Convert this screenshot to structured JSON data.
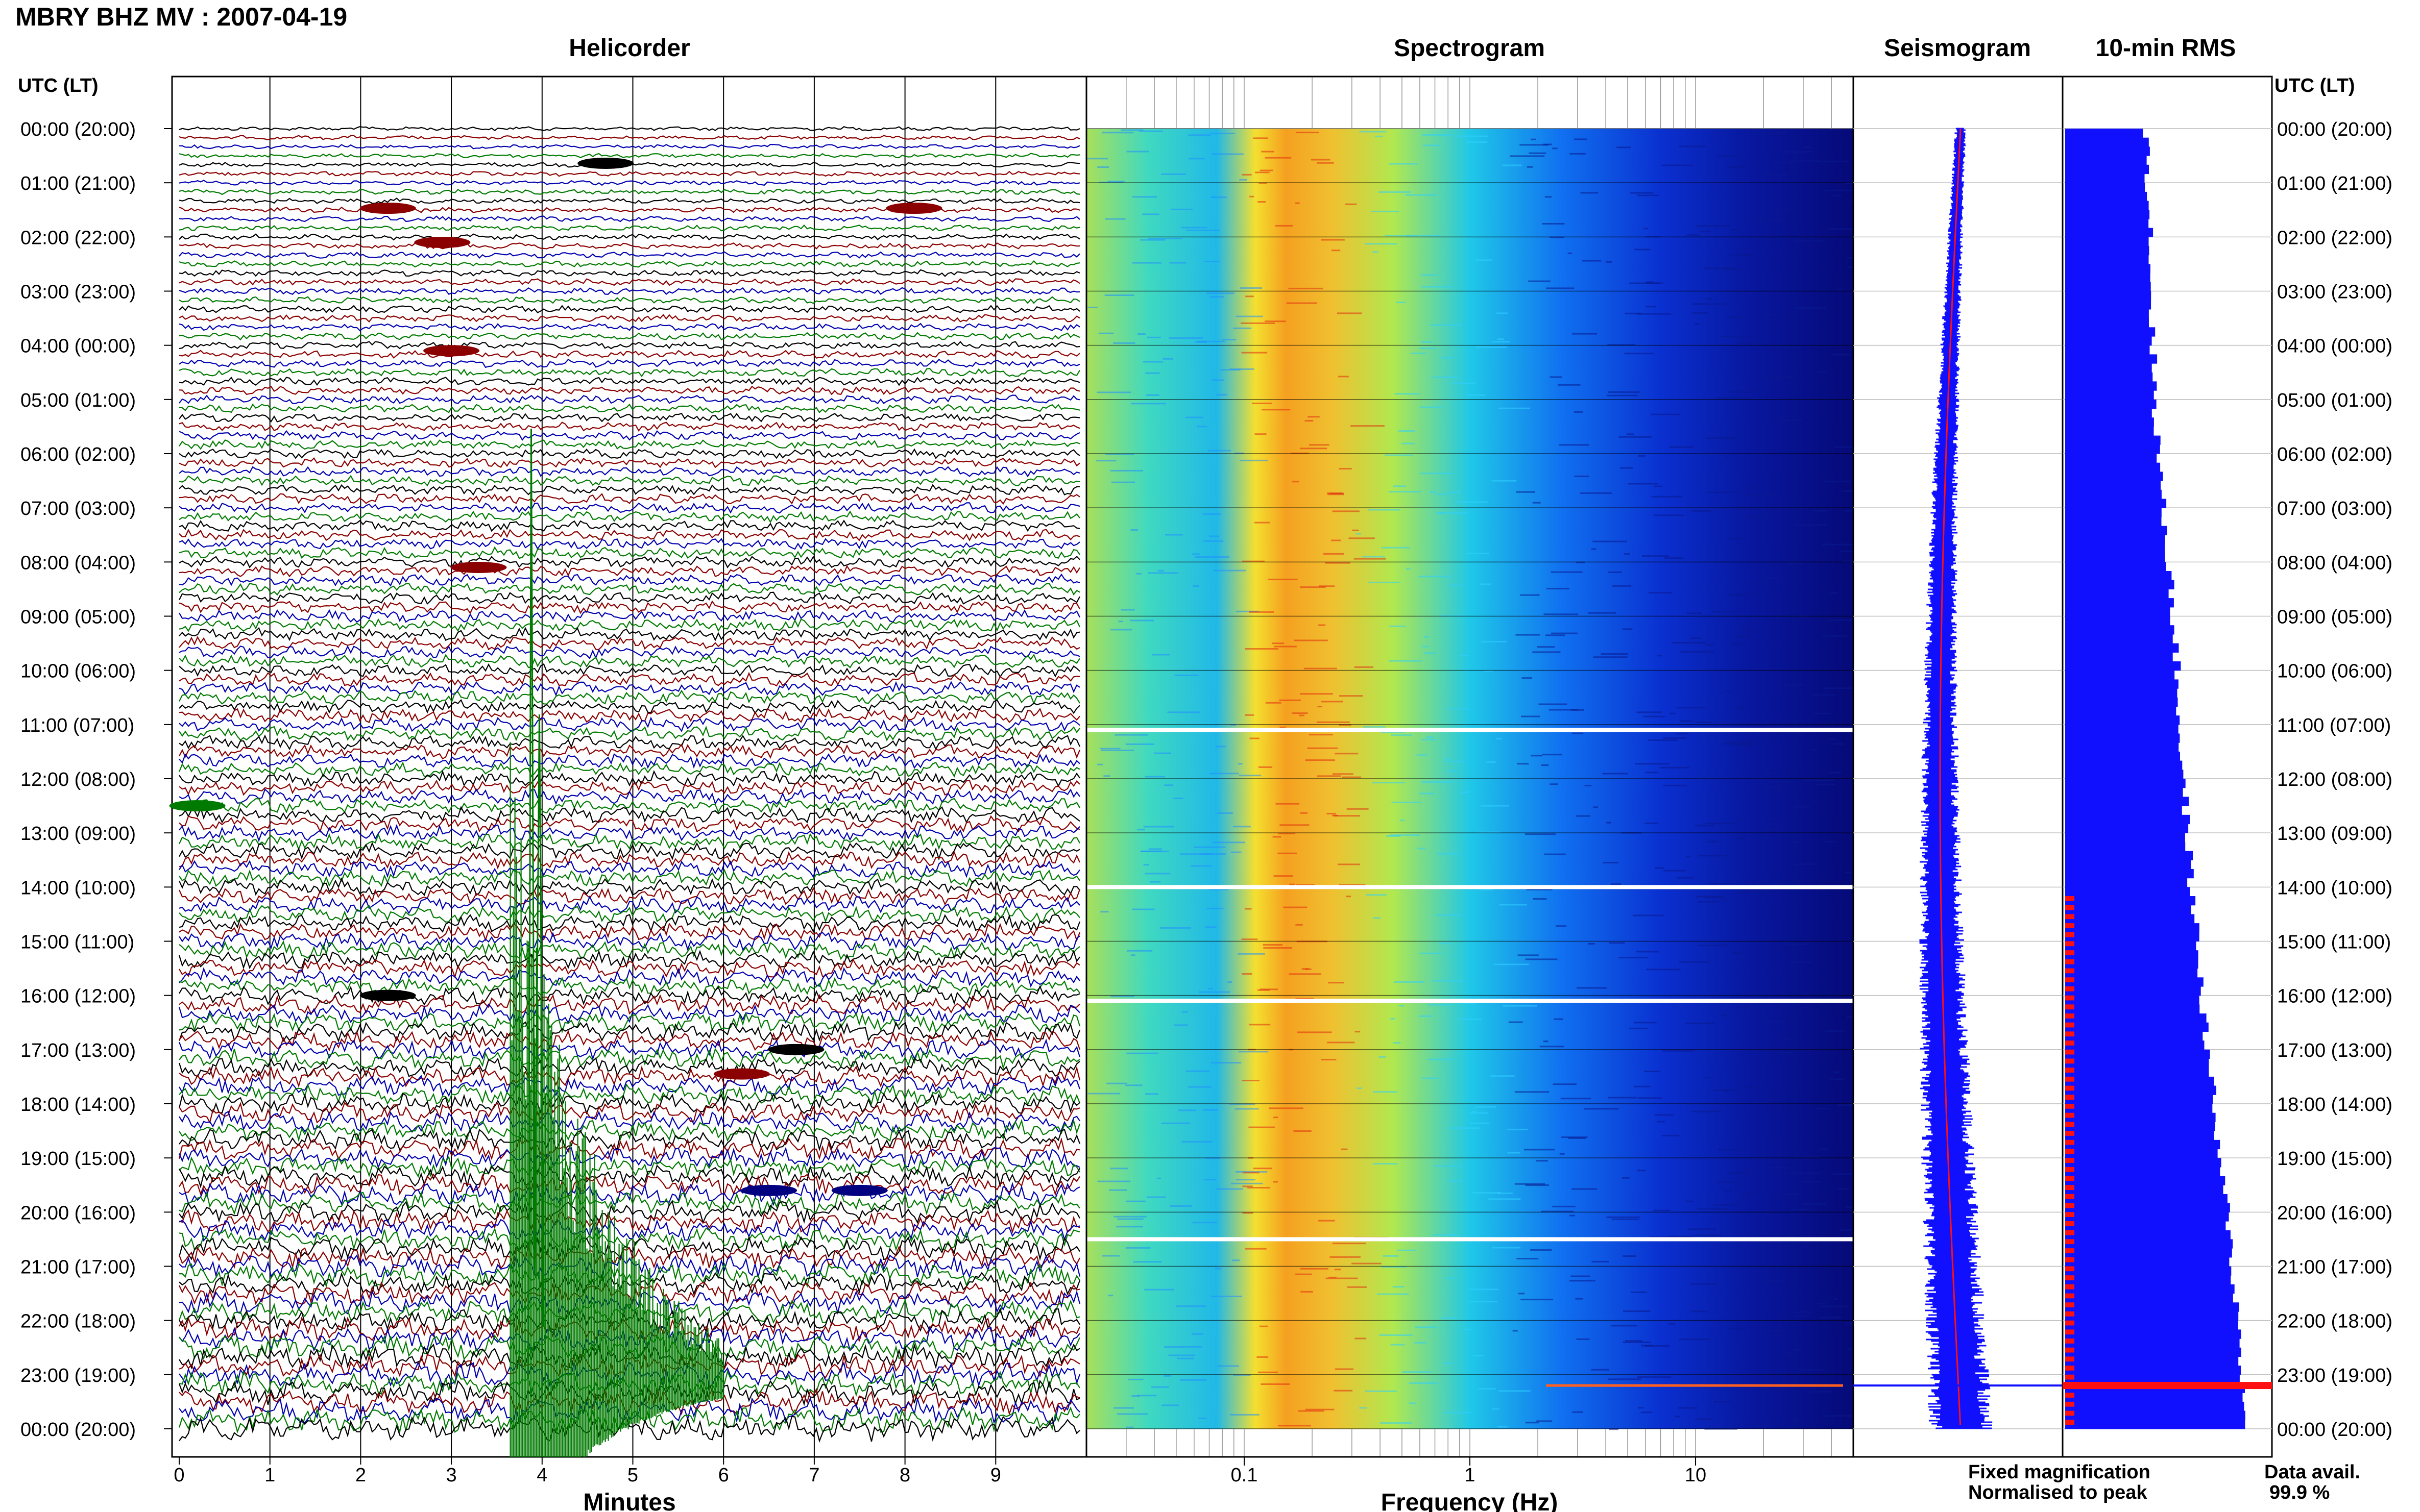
{
  "header": {
    "title": "MBRY BHZ MV : 2007-04-19"
  },
  "panels": {
    "helicorder": "Helicorder",
    "spectrogram": "Spectrogram",
    "seismogram": "Seismogram",
    "rms": "10-min RMS"
  },
  "axis": {
    "time_label_left": "UTC (LT)",
    "time_label_right": "UTC (LT)",
    "minutes_label": "Minutes",
    "frequency_label": "Frequency (Hz)"
  },
  "legend": {
    "fixed": "Fixed magnification",
    "normalised": "Normalised to peak",
    "fixed_color": "#1010ff",
    "normalised_color": "#ff1010"
  },
  "data_avail": {
    "label": "Data avail.",
    "value": "99.9 %"
  },
  "chart_data": {
    "type": "heatmap",
    "station": "MBRY BHZ MV",
    "date": "2007-04-19",
    "time_ticks": [
      "00:00 (20:00)",
      "01:00 (21:00)",
      "02:00 (22:00)",
      "03:00 (23:00)",
      "04:00 (00:00)",
      "05:00 (01:00)",
      "06:00 (02:00)",
      "07:00 (03:00)",
      "08:00 (04:00)",
      "09:00 (05:00)",
      "10:00 (06:00)",
      "11:00 (07:00)",
      "12:00 (08:00)",
      "13:00 (09:00)",
      "14:00 (10:00)",
      "15:00 (11:00)",
      "16:00 (12:00)",
      "17:00 (13:00)",
      "18:00 (14:00)",
      "19:00 (15:00)",
      "20:00 (16:00)",
      "21:00 (17:00)",
      "22:00 (18:00)",
      "23:00 (19:00)",
      "00:00 (20:00)"
    ],
    "minutes_ticks": [
      "0",
      "1",
      "2",
      "3",
      "4",
      "5",
      "6",
      "7",
      "8",
      "9"
    ],
    "minutes_range": [
      0,
      10
    ],
    "frequency_ticks": [
      {
        "value": 0.1,
        "label": "0.1"
      },
      {
        "value": 1,
        "label": "1"
      },
      {
        "value": 10,
        "label": "10"
      }
    ],
    "frequency_range": [
      0.02,
      50
    ],
    "frequency_scale": "log",
    "helicorder_colors": [
      "#000000",
      "#8b0000",
      "#0000b0",
      "#007a00"
    ],
    "spectrogram_gaps_hours": [
      11.1,
      14.0,
      16.1,
      20.5
    ],
    "event_time_hours": 23.2,
    "rms_hourly_relative": [
      0.4,
      0.41,
      0.42,
      0.42,
      0.43,
      0.44,
      0.46,
      0.48,
      0.51,
      0.53,
      0.55,
      0.56,
      0.58,
      0.6,
      0.62,
      0.65,
      0.67,
      0.7,
      0.73,
      0.75,
      0.8,
      0.82,
      0.85,
      0.87,
      0.87
    ]
  }
}
